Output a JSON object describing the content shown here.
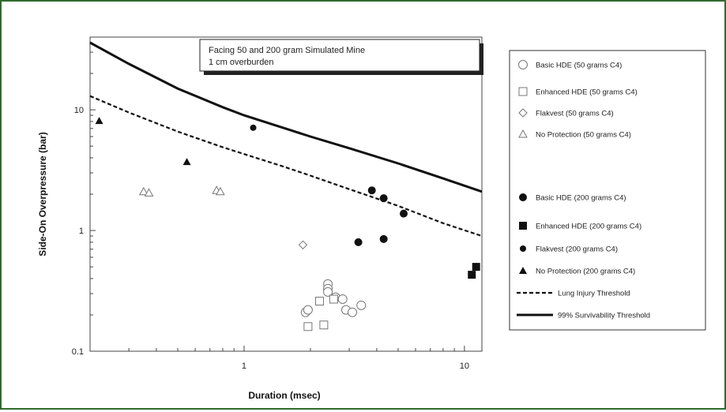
{
  "chart_data": {
    "type": "scatter",
    "xlabel": "Duration (msec)",
    "ylabel": "Side-On Overpressure (bar)",
    "x_scale": "log",
    "y_scale": "log",
    "xlim": [
      0.2,
      12
    ],
    "ylim": [
      0.1,
      40
    ],
    "x_ticks": [
      {
        "value": 1,
        "label": "1"
      },
      {
        "value": 10,
        "label": "10"
      }
    ],
    "y_ticks": [
      {
        "value": 0.1,
        "label": "0.1"
      },
      {
        "value": 1,
        "label": "1"
      },
      {
        "value": 10,
        "label": "10"
      }
    ],
    "annotation": {
      "line1": "Facing 50 and 200 gram Simulated Mine",
      "line2": "1 cm overburden"
    },
    "legend_position": "right",
    "series": [
      {
        "name": "Basic HDE (50 grams C4)",
        "marker": "circle-open",
        "points": [
          [
            1.9,
            0.21
          ],
          [
            1.95,
            0.22
          ],
          [
            2.4,
            0.36
          ],
          [
            2.4,
            0.33
          ],
          [
            2.4,
            0.31
          ],
          [
            2.6,
            0.28
          ],
          [
            2.8,
            0.27
          ],
          [
            2.9,
            0.22
          ],
          [
            3.1,
            0.21
          ],
          [
            3.4,
            0.24
          ]
        ]
      },
      {
        "name": "Enhanced HDE (50 grams C4)",
        "marker": "square-open",
        "points": [
          [
            1.95,
            0.16
          ],
          [
            2.2,
            0.26
          ],
          [
            2.3,
            0.165
          ],
          [
            2.55,
            0.27
          ]
        ]
      },
      {
        "name": "Flakvest (50 grams C4)",
        "marker": "diamond-open",
        "points": [
          [
            1.85,
            0.76
          ]
        ]
      },
      {
        "name": "No Protection (50 grams C4)",
        "marker": "triangle-open",
        "points": [
          [
            0.35,
            2.1
          ],
          [
            0.37,
            2.05
          ],
          [
            0.75,
            2.15
          ],
          [
            0.78,
            2.1
          ]
        ]
      },
      {
        "name": "Basic HDE (200 grams C4)",
        "marker": "circle-filled",
        "points": [
          [
            3.3,
            0.8
          ],
          [
            3.8,
            2.15
          ],
          [
            4.3,
            1.85
          ],
          [
            4.3,
            0.85
          ],
          [
            5.3,
            1.38
          ]
        ]
      },
      {
        "name": "Enhanced HDE (200 grams C4)",
        "marker": "square-filled",
        "points": [
          [
            10.8,
            0.43
          ],
          [
            11.3,
            0.5
          ]
        ]
      },
      {
        "name": "Flakvest (200 grams C4)",
        "marker": "circle-filled-small",
        "points": [
          [
            1.1,
            7.1
          ]
        ]
      },
      {
        "name": "No Protection (200 grams C4)",
        "marker": "triangle-filled",
        "points": [
          [
            0.22,
            8.1
          ],
          [
            0.55,
            3.7
          ]
        ]
      }
    ],
    "curves": [
      {
        "name": "Lung Injury Threshold",
        "style": "dashed",
        "points": [
          [
            0.2,
            13
          ],
          [
            0.3,
            9.5
          ],
          [
            0.5,
            6.6
          ],
          [
            0.8,
            4.9
          ],
          [
            1,
            4.3
          ],
          [
            1.5,
            3.4
          ],
          [
            2,
            2.85
          ],
          [
            3,
            2.2
          ],
          [
            5,
            1.6
          ],
          [
            8,
            1.15
          ],
          [
            12,
            0.9
          ]
        ]
      },
      {
        "name": "99% Survivability Threshold",
        "style": "solid",
        "points": [
          [
            0.2,
            36
          ],
          [
            0.3,
            24
          ],
          [
            0.5,
            15
          ],
          [
            0.8,
            10.5
          ],
          [
            1,
            9
          ],
          [
            1.5,
            7.1
          ],
          [
            2,
            6
          ],
          [
            3,
            4.8
          ],
          [
            5,
            3.6
          ],
          [
            8,
            2.7
          ],
          [
            12,
            2.1
          ]
        ]
      }
    ]
  }
}
